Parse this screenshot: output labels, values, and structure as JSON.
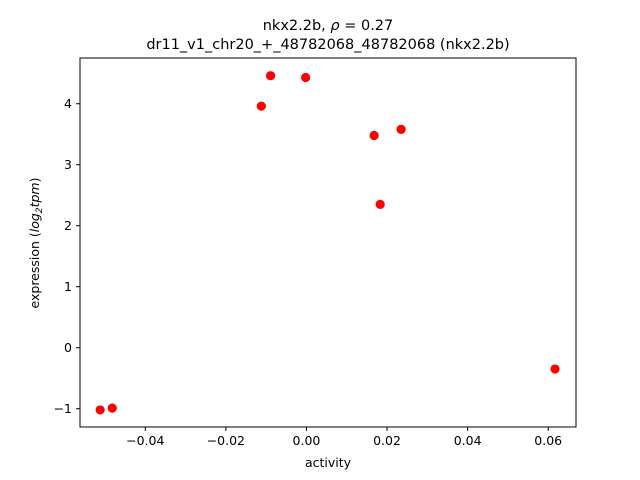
{
  "chart_data": {
    "type": "scatter",
    "title_line1_prefix": "nkx2.2b, ",
    "title_line1_rho_symbol": "ρ",
    "title_line1_rho_value": " = 0.27",
    "title_line2": "dr11_v1_chr20_+_48782068_48782068 (nkx2.2b)",
    "xlabel": "activity",
    "ylabel_prefix": "expression (",
    "ylabel_log": "log",
    "ylabel_sub": "2",
    "ylabel_tpm": "tpm",
    "ylabel_suffix": ")",
    "xlim": [
      -0.0562,
      0.0669
    ],
    "ylim": [
      -1.3,
      4.75
    ],
    "xticks": [
      -0.04,
      -0.02,
      0.0,
      0.02,
      0.04,
      0.06
    ],
    "xtick_labels": [
      "−0.04",
      "−0.02",
      "0.00",
      "0.02",
      "0.04",
      "0.06"
    ],
    "yticks": [
      -1,
      0,
      1,
      2,
      3,
      4
    ],
    "ytick_labels": [
      "−1",
      "0",
      "1",
      "2",
      "3",
      "4"
    ],
    "grid": false,
    "marker_color": "#ff0000",
    "points": [
      {
        "x": -0.0512,
        "y": -1.02
      },
      {
        "x": -0.0482,
        "y": -0.99
      },
      {
        "x": -0.0112,
        "y": 3.96
      },
      {
        "x": -0.0089,
        "y": 4.46
      },
      {
        "x": -0.0002,
        "y": 4.43
      },
      {
        "x": 0.0168,
        "y": 3.48
      },
      {
        "x": 0.0183,
        "y": 2.35
      },
      {
        "x": 0.0235,
        "y": 3.58
      },
      {
        "x": 0.0617,
        "y": -0.35
      }
    ]
  }
}
